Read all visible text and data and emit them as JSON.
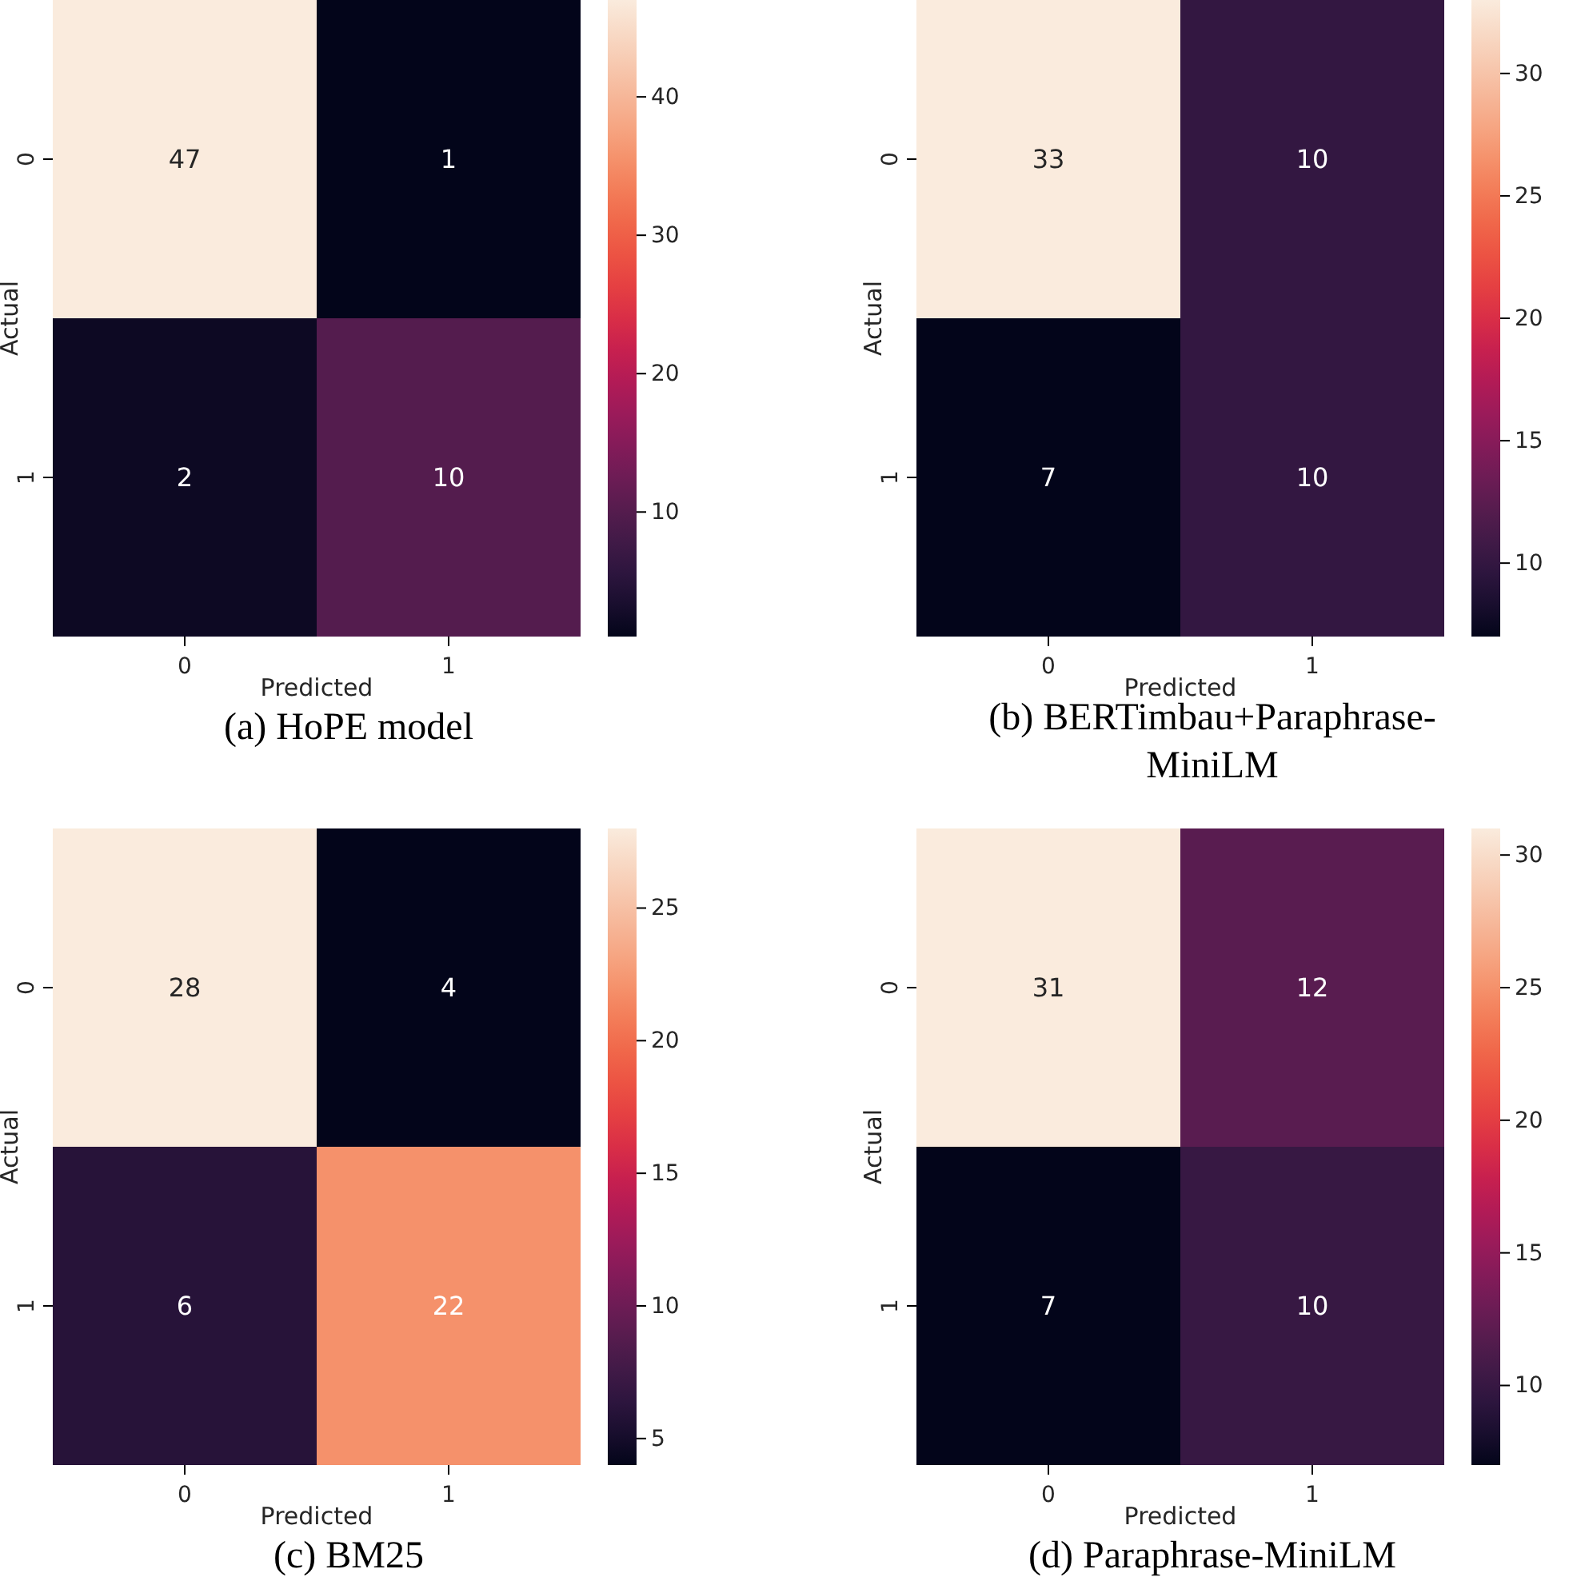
{
  "chart_data": [
    {
      "type": "heatmap",
      "title": "(a) HoPE model",
      "xlabel": "Predicted",
      "ylabel": "Actual",
      "categories": [
        "0",
        "1"
      ],
      "y_categories": [
        "0",
        "1"
      ],
      "cells": [
        [
          47,
          1
        ],
        [
          2,
          10
        ]
      ],
      "clim": [
        1,
        47
      ],
      "cticks": [
        10,
        20,
        30,
        40
      ],
      "data_labels": true
    },
    {
      "type": "heatmap",
      "title": "(b) BERTimbau+Paraphrase-MiniLM",
      "xlabel": "Predicted",
      "ylabel": "Actual",
      "categories": [
        "0",
        "1"
      ],
      "y_categories": [
        "0",
        "1"
      ],
      "cells": [
        [
          33,
          10
        ],
        [
          7,
          10
        ]
      ],
      "clim": [
        7,
        33
      ],
      "cticks": [
        10,
        15,
        20,
        25,
        30
      ],
      "data_labels": true
    },
    {
      "type": "heatmap",
      "title": "(c) BM25",
      "xlabel": "Predicted",
      "ylabel": "Actual",
      "categories": [
        "0",
        "1"
      ],
      "y_categories": [
        "0",
        "1"
      ],
      "cells": [
        [
          28,
          4
        ],
        [
          6,
          22
        ]
      ],
      "clim": [
        4,
        28
      ],
      "cticks": [
        5,
        10,
        15,
        20,
        25
      ],
      "data_labels": true
    },
    {
      "type": "heatmap",
      "title": "(d) Paraphrase-MiniLM",
      "xlabel": "Predicted",
      "ylabel": "Actual",
      "categories": [
        "0",
        "1"
      ],
      "y_categories": [
        "0",
        "1"
      ],
      "cells": [
        [
          31,
          12
        ],
        [
          7,
          10
        ]
      ],
      "clim": [
        7,
        31
      ],
      "cticks": [
        10,
        15,
        20,
        25,
        30
      ],
      "data_labels": true
    }
  ]
}
